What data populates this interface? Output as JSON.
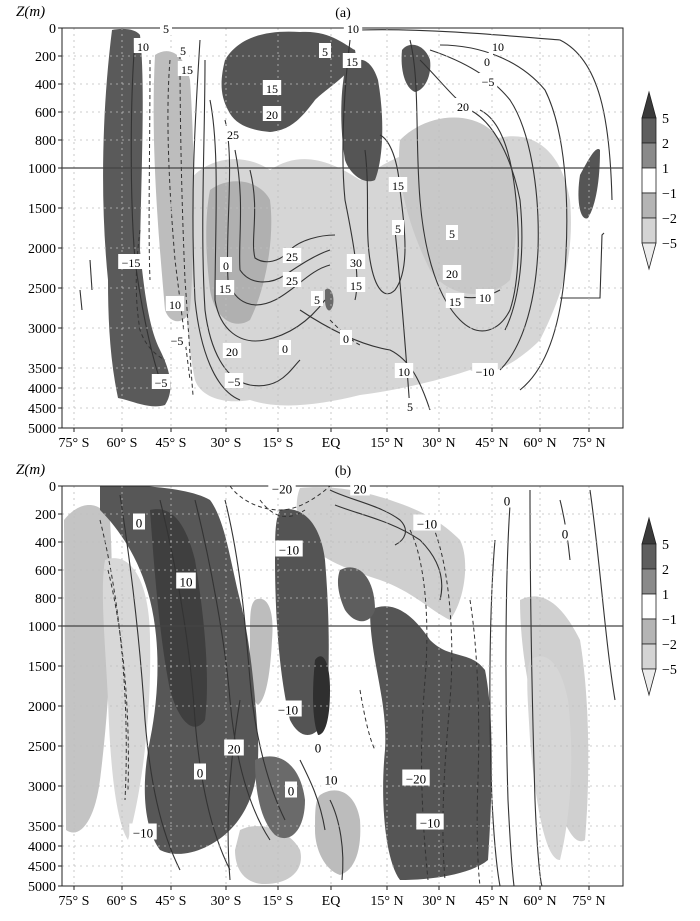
{
  "chart_data": [
    {
      "type": "heatmap",
      "panel_label": "(a)",
      "ylabel": "Z(m)",
      "y_ticks": [
        "0",
        "200",
        "400",
        "600",
        "800",
        "1000",
        "1500",
        "2000",
        "2500",
        "3000",
        "3500",
        "4000",
        "4500",
        "5000"
      ],
      "x_ticks": [
        "75° S",
        "60° S",
        "45° S",
        "30° S",
        "15° S",
        "EQ",
        "15° N",
        "30° N",
        "45° N",
        "60° N",
        "75° N"
      ],
      "y_axis_break_at": "1000",
      "colorbar": {
        "levels": [
          "5",
          "2",
          "1",
          "−1",
          "−2",
          "−5"
        ],
        "colors": [
          "#3a3a3a",
          "#5e5e5e",
          "#8a8a8a",
          "#ffffff",
          "#b4b4b4",
          "#d4d4d4",
          "#ececec"
        ]
      },
      "contour_labels": [
        "5",
        "10",
        "10",
        "5",
        "15",
        "10",
        "5",
        "15",
        "0",
        "−5",
        "15",
        "20",
        "20",
        "25",
        "15",
        "5",
        "5",
        "0",
        "25",
        "30",
        "20",
        "15",
        "25",
        "15",
        "15",
        "10",
        "20",
        "10",
        "0",
        "5",
        "10",
        "−15",
        "−5",
        "−10",
        "0",
        "5",
        "−5",
        "−5"
      ]
    },
    {
      "type": "heatmap",
      "panel_label": "(b)",
      "ylabel": "Z(m)",
      "y_ticks": [
        "0",
        "200",
        "400",
        "600",
        "800",
        "1000",
        "1500",
        "2000",
        "2500",
        "3000",
        "3500",
        "4000",
        "4500",
        "5000"
      ],
      "x_ticks": [
        "75° S",
        "60° S",
        "45° S",
        "30° S",
        "15° S",
        "EQ",
        "15° N",
        "30° N",
        "45° N",
        "60° N",
        "75° N"
      ],
      "y_axis_break_at": "1000",
      "colorbar": {
        "levels": [
          "5",
          "2",
          "1",
          "−1",
          "−2",
          "−5"
        ],
        "colors": [
          "#3a3a3a",
          "#5e5e5e",
          "#8a8a8a",
          "#ffffff",
          "#b4b4b4",
          "#d4d4d4",
          "#ececec"
        ]
      },
      "contour_labels": [
        "−20",
        "20",
        "0",
        "−10",
        "0",
        "−10",
        "0",
        "10",
        "−10",
        "20",
        "0",
        "0",
        "−20",
        "10",
        "0",
        "−10",
        "−10"
      ]
    }
  ]
}
